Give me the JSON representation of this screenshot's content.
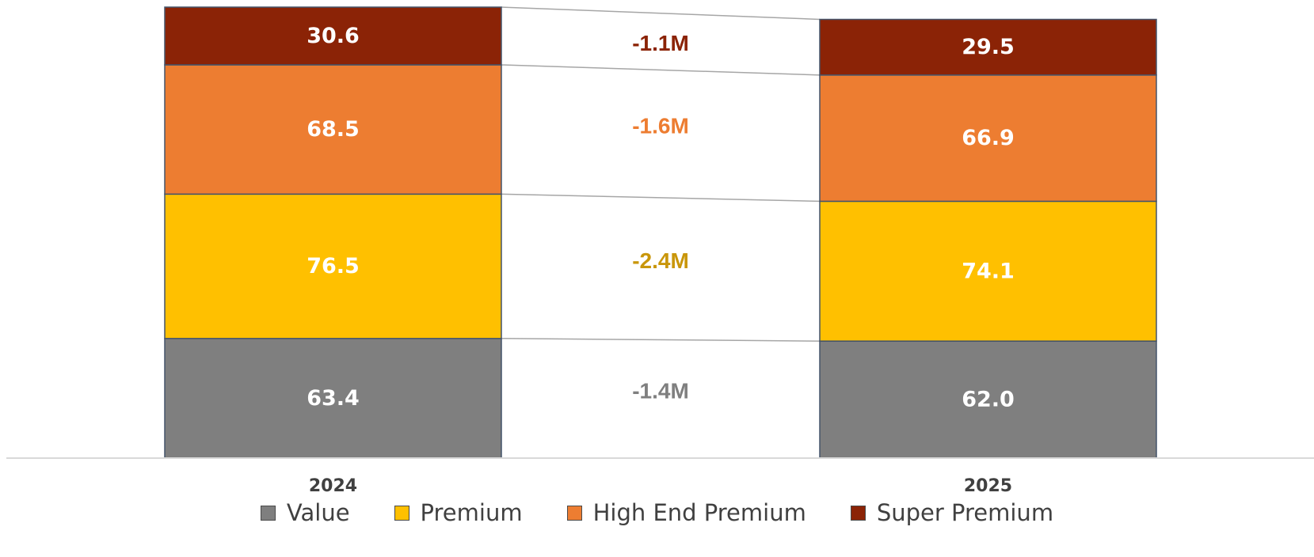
{
  "chart_data": {
    "type": "bar",
    "stacked": true,
    "categories": [
      "2024",
      "2025"
    ],
    "series": [
      {
        "name": "Value",
        "color": "#7f7f7f",
        "values": [
          63.4,
          62.0
        ]
      },
      {
        "name": "Premium",
        "color": "#ffc000",
        "values": [
          76.5,
          74.1
        ]
      },
      {
        "name": "High End Premium",
        "color": "#ed7d31",
        "values": [
          68.5,
          66.9
        ]
      },
      {
        "name": "Super Premium",
        "color": "#8b2306",
        "values": [
          30.6,
          29.5
        ]
      }
    ],
    "value_labels": [
      [
        "63.4",
        "62.0"
      ],
      [
        "76.5",
        "74.1"
      ],
      [
        "68.5",
        "66.9"
      ],
      [
        "30.6",
        "29.5"
      ]
    ],
    "change_labels": [
      {
        "text": "-1.4M",
        "color": "#7f7f7f"
      },
      {
        "text": "-2.4M",
        "color": "#c9960a"
      },
      {
        "text": "-1.6M",
        "color": "#ed7d31"
      },
      {
        "text": "-1.1M",
        "color": "#8b2306"
      }
    ],
    "grid": false,
    "legend_position": "bottom",
    "title": "",
    "xlabel": "",
    "ylabel": ""
  }
}
